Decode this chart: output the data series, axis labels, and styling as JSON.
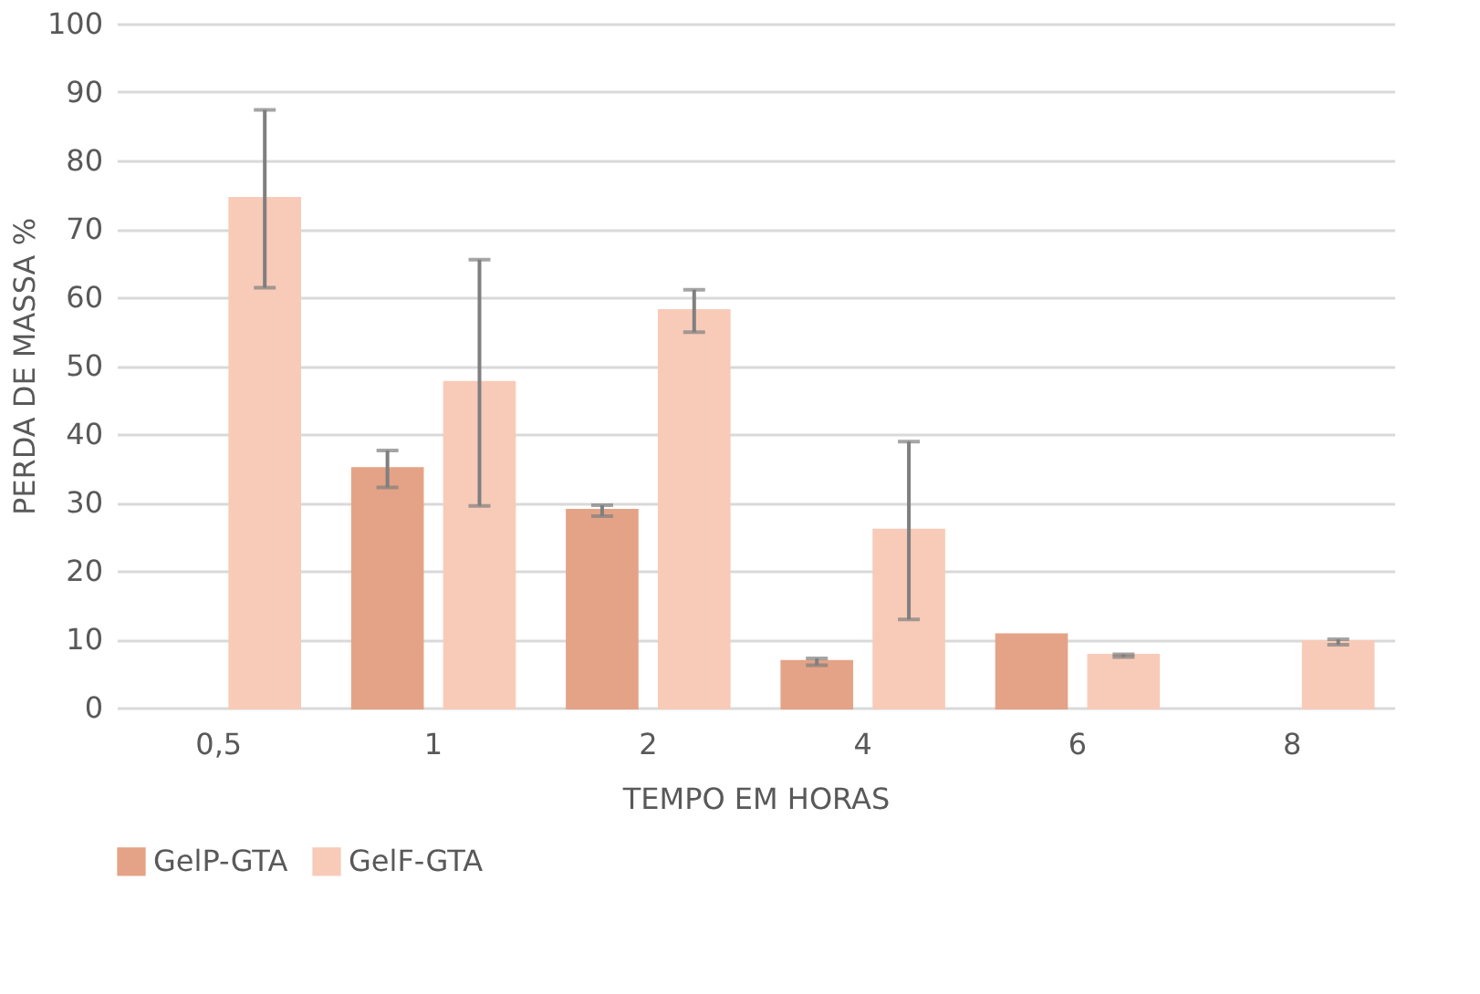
{
  "chart_data": {
    "type": "bar",
    "xlabel": "TEMPO EM HORAS",
    "ylabel": "PERDA DE MASSA %",
    "categories": [
      "0,5",
      "1",
      "2",
      "4",
      "6",
      "8"
    ],
    "series": [
      {
        "name": "GelP-GTA",
        "color": "#e4a386",
        "values": [
          null,
          34.9,
          28.8,
          6.7,
          10.6,
          null
        ],
        "errors": [
          null,
          2.7,
          0.8,
          0.5,
          null,
          null
        ]
      },
      {
        "name": "GelF-GTA",
        "color": "#f8cbb8",
        "values": [
          74.4,
          47.5,
          58.0,
          25.9,
          7.6,
          9.6
        ],
        "errors": [
          13,
          18,
          3.1,
          13,
          0.2,
          0.4
        ]
      }
    ],
    "ylim": [
      0,
      100
    ],
    "yticks": [
      0,
      10,
      20,
      30,
      40,
      50,
      60,
      70,
      80,
      90,
      100
    ],
    "grid": "y",
    "legend": "bottom"
  }
}
